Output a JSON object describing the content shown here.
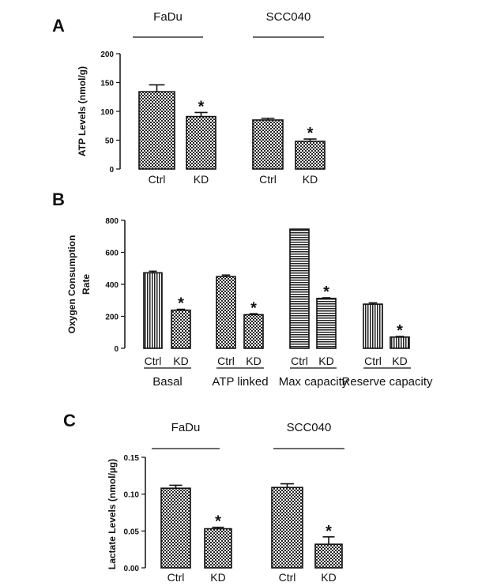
{
  "colors": {
    "ink": "#111111",
    "background": "#ffffff"
  },
  "chart_data": [
    {
      "panel": "A",
      "type": "bar",
      "ylabel": "ATP Levels (nmol/g)",
      "ylim": [
        0,
        200
      ],
      "yticks": [
        "0",
        "50",
        "100",
        "150",
        "200"
      ],
      "groups": [
        {
          "label": "FaDu",
          "categories": [
            "Ctrl",
            "KD"
          ],
          "values": [
            134,
            91
          ],
          "errors": [
            12,
            7
          ],
          "significance": [
            "",
            "*"
          ],
          "patterns": [
            "crosshatch",
            "crosshatch"
          ]
        },
        {
          "label": "SCC040",
          "categories": [
            "Ctrl",
            "KD"
          ],
          "values": [
            85,
            48
          ],
          "errors": [
            3,
            4
          ],
          "significance": [
            "",
            "*"
          ],
          "patterns": [
            "crosshatch",
            "crosshatch"
          ]
        }
      ]
    },
    {
      "panel": "B",
      "type": "bar",
      "ylabel": "Oxygen Consumption Rate",
      "ylim": [
        0,
        800
      ],
      "yticks": [
        "0",
        "200",
        "400",
        "600",
        "800"
      ],
      "groups": [
        {
          "label": "Basal",
          "categories": [
            "Ctrl",
            "KD"
          ],
          "values": [
            472,
            238
          ],
          "errors": [
            10,
            6
          ],
          "significance": [
            "",
            "*"
          ],
          "patterns": [
            "vertical",
            "crosshatch"
          ]
        },
        {
          "label": "ATP linked",
          "categories": [
            "Ctrl",
            "KD"
          ],
          "values": [
            448,
            210
          ],
          "errors": [
            10,
            6
          ],
          "significance": [
            "",
            "*"
          ],
          "patterns": [
            "crosshatch",
            "crosshatch"
          ]
        },
        {
          "label": "Max capacity",
          "categories": [
            "Ctrl",
            "KD"
          ],
          "values": [
            745,
            312
          ],
          "errors": [
            0,
            4
          ],
          "significance": [
            "",
            "*"
          ],
          "patterns": [
            "horizontal",
            "horizontal"
          ]
        },
        {
          "label": "Reserve capacity",
          "categories": [
            "Ctrl",
            "KD"
          ],
          "values": [
            276,
            70
          ],
          "errors": [
            8,
            4
          ],
          "significance": [
            "",
            "*"
          ],
          "patterns": [
            "vertical",
            "vertical"
          ]
        }
      ]
    },
    {
      "panel": "C",
      "type": "bar",
      "ylabel": "Lactate Levels (nmol/µg)",
      "ylim": [
        0,
        0.15
      ],
      "yticks": [
        "0.00",
        "0.05",
        "0.10",
        "0.15"
      ],
      "groups": [
        {
          "label": "FaDu",
          "categories": [
            "Ctrl",
            "KD"
          ],
          "values": [
            0.108,
            0.053
          ],
          "errors": [
            0.004,
            0.002
          ],
          "significance": [
            "",
            "*"
          ],
          "patterns": [
            "crosshatch",
            "crosshatch"
          ]
        },
        {
          "label": "SCC040",
          "categories": [
            "Ctrl",
            "KD"
          ],
          "values": [
            0.109,
            0.032
          ],
          "errors": [
            0.005,
            0.01
          ],
          "significance": [
            "",
            "*"
          ],
          "patterns": [
            "crosshatch",
            "crosshatch"
          ]
        }
      ]
    }
  ]
}
